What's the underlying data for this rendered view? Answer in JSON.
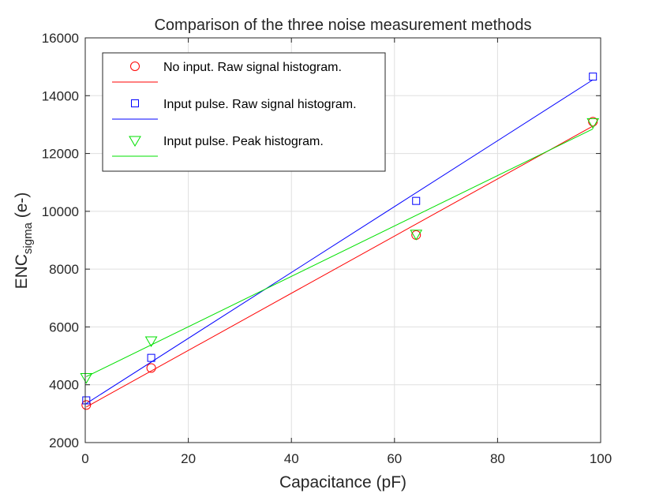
{
  "chart_data": {
    "type": "scatter",
    "title": "Comparison of the three noise measurement methods",
    "xlabel": "Capacitance (pF)",
    "ylabel_main": "ENC",
    "ylabel_sub": "sigma",
    "ylabel_tail": " (e-)",
    "xlim": [
      0,
      100
    ],
    "ylim": [
      2000,
      16000
    ],
    "xticks": [
      0,
      20,
      40,
      60,
      80,
      100
    ],
    "yticks": [
      2000,
      4000,
      6000,
      8000,
      10000,
      12000,
      14000,
      16000
    ],
    "grid": true,
    "legend_position": "top-left",
    "series": [
      {
        "name": "No input. Raw signal histogram.",
        "marker": "circle",
        "color": "#ff0000",
        "points": [
          [
            0.2,
            3300
          ],
          [
            12.8,
            4580
          ],
          [
            64.2,
            9180
          ],
          [
            98.5,
            13100
          ]
        ],
        "fit": [
          [
            0.2,
            3230
          ],
          [
            98.5,
            12950
          ]
        ]
      },
      {
        "name": "Input pulse. Raw signal histogram.",
        "marker": "square",
        "color": "#0000ff",
        "points": [
          [
            0.2,
            3460
          ],
          [
            12.8,
            4930
          ],
          [
            64.2,
            10360
          ],
          [
            98.5,
            14660
          ]
        ],
        "fit": [
          [
            0.2,
            3350
          ],
          [
            98.5,
            14550
          ]
        ]
      },
      {
        "name": "Input pulse. Peak histogram.",
        "marker": "triangle-down",
        "color": "#00e000",
        "points": [
          [
            0.2,
            4250
          ],
          [
            12.8,
            5520
          ],
          [
            64.2,
            9210
          ],
          [
            98.5,
            13070
          ]
        ],
        "fit": [
          [
            0.2,
            4280
          ],
          [
            98.5,
            12850
          ]
        ]
      }
    ]
  }
}
